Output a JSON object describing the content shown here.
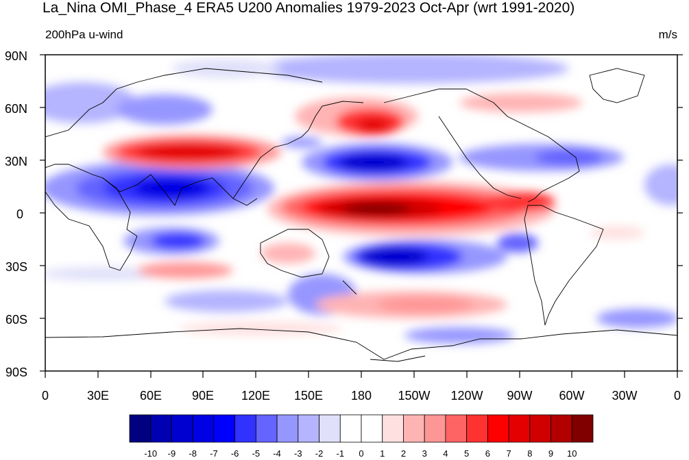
{
  "title": "La_Nina OMI_Phase_4 ERA5 U200 Anomalies 1979-2023 Oct-Apr (wrt 1991-2020)",
  "left_label": "200hPa u-wind",
  "right_label": "m/s",
  "lat_labels": [
    "90N",
    "60N",
    "30N",
    "0",
    "30S",
    "60S",
    "90S"
  ],
  "lon_labels": [
    "0",
    "30E",
    "60E",
    "90E",
    "120E",
    "150E",
    "180",
    "150W",
    "120W",
    "90W",
    "60W",
    "30W",
    "0"
  ],
  "colorbar": {
    "labels": [
      "-10",
      "-9",
      "-8",
      "-7",
      "-6",
      "-5",
      "-4",
      "-3",
      "-2",
      "-1",
      "0",
      "1",
      "2",
      "3",
      "4",
      "5",
      "6",
      "7",
      "8",
      "9",
      "10"
    ],
    "colors": [
      "#000080",
      "#0000b2",
      "#0000d0",
      "#0000e4",
      "#0000ff",
      "#3232ff",
      "#6464ff",
      "#9696ff",
      "#b4b4ff",
      "#e0e0fa",
      "#ffffff",
      "#ffffff",
      "#ffe0e0",
      "#ffb4b4",
      "#ff9696",
      "#ff6464",
      "#ff3232",
      "#ff0000",
      "#e40000",
      "#d00000",
      "#b20000",
      "#800000"
    ]
  },
  "chart_data": {
    "type": "heatmap",
    "variable": "200hPa u-wind anomaly",
    "units": "m/s",
    "x_range": [
      0,
      360
    ],
    "y_range": [
      -90,
      90
    ],
    "features": [
      {
        "lon": 190,
        "lat": 2,
        "value": 10,
        "sign": "positive"
      },
      {
        "lon": 265,
        "lat": 8,
        "value": 6,
        "sign": "positive"
      },
      {
        "lon": 75,
        "lat": 34,
        "value": 7,
        "sign": "positive"
      },
      {
        "lon": 185,
        "lat": 48,
        "value": 7,
        "sign": "positive"
      },
      {
        "lon": 210,
        "lat": -45,
        "value": 3,
        "sign": "positive"
      },
      {
        "lon": 70,
        "lat": 10,
        "value": -7,
        "sign": "negative"
      },
      {
        "lon": 185,
        "lat": 27,
        "value": -7,
        "sign": "negative"
      },
      {
        "lon": 200,
        "lat": -25,
        "value": -7,
        "sign": "negative"
      },
      {
        "lon": 75,
        "lat": -17,
        "value": -5,
        "sign": "negative"
      },
      {
        "lon": 210,
        "lat": 80,
        "value": -3,
        "sign": "negative"
      }
    ]
  }
}
